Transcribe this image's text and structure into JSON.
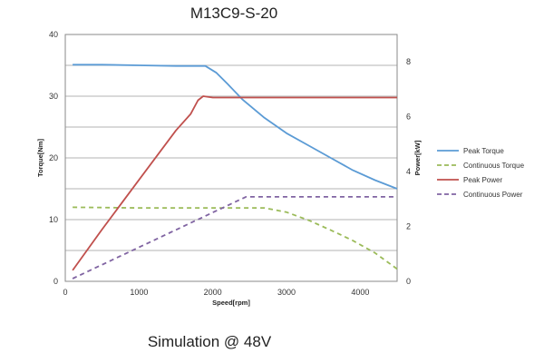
{
  "chart_data": {
    "type": "line",
    "title": "M13C9-S-20",
    "subtitle": "Simulation @ 48V",
    "xlabel": "Speed[rpm]",
    "ylabel_left": "Torque[Nm]",
    "ylabel_right": "Power[kW]",
    "xlim": [
      0,
      4500
    ],
    "ylim_left": [
      0,
      40
    ],
    "ylim_right": [
      0,
      9
    ],
    "x_ticks": [
      0,
      1000,
      2000,
      3000,
      4000
    ],
    "y_left_ticks": [
      0,
      10,
      20,
      30,
      40
    ],
    "y_right_ticks": [
      0,
      2,
      4,
      6,
      8
    ],
    "grid": true,
    "legend_position": "right",
    "series": [
      {
        "name": "Peak Torque",
        "axis": "left",
        "color": "#5b9bd5",
        "dash": "solid",
        "x": [
          100,
          500,
          1000,
          1500,
          1900,
          2050,
          2200,
          2400,
          2700,
          3000,
          3300,
          3600,
          3900,
          4200,
          4500
        ],
        "y": [
          35.1,
          35.1,
          35.0,
          34.9,
          34.9,
          33.8,
          32.0,
          29.5,
          26.5,
          24.0,
          22.0,
          20.0,
          18.0,
          16.4,
          15.0
        ]
      },
      {
        "name": "Continuous Torque",
        "axis": "left",
        "color": "#9bbb59",
        "dash": "dashed",
        "x": [
          100,
          1000,
          2000,
          2700,
          3000,
          3300,
          3600,
          3900,
          4200,
          4500
        ],
        "y": [
          12.0,
          11.9,
          11.9,
          11.9,
          11.2,
          9.9,
          8.3,
          6.6,
          4.6,
          2.0
        ]
      },
      {
        "name": "Peak Power",
        "axis": "right",
        "color": "#c0504d",
        "dash": "solid",
        "x": [
          100,
          500,
          1000,
          1500,
          1700,
          1800,
          1870,
          2000,
          3000,
          4500
        ],
        "y": [
          0.4,
          1.9,
          3.7,
          5.5,
          6.1,
          6.6,
          6.75,
          6.7,
          6.7,
          6.7
        ]
      },
      {
        "name": "Continuous Power",
        "axis": "right",
        "color": "#8064a2",
        "dash": "dashed",
        "x": [
          100,
          2450,
          4500
        ],
        "y": [
          0.1,
          3.08,
          3.08
        ]
      }
    ]
  }
}
